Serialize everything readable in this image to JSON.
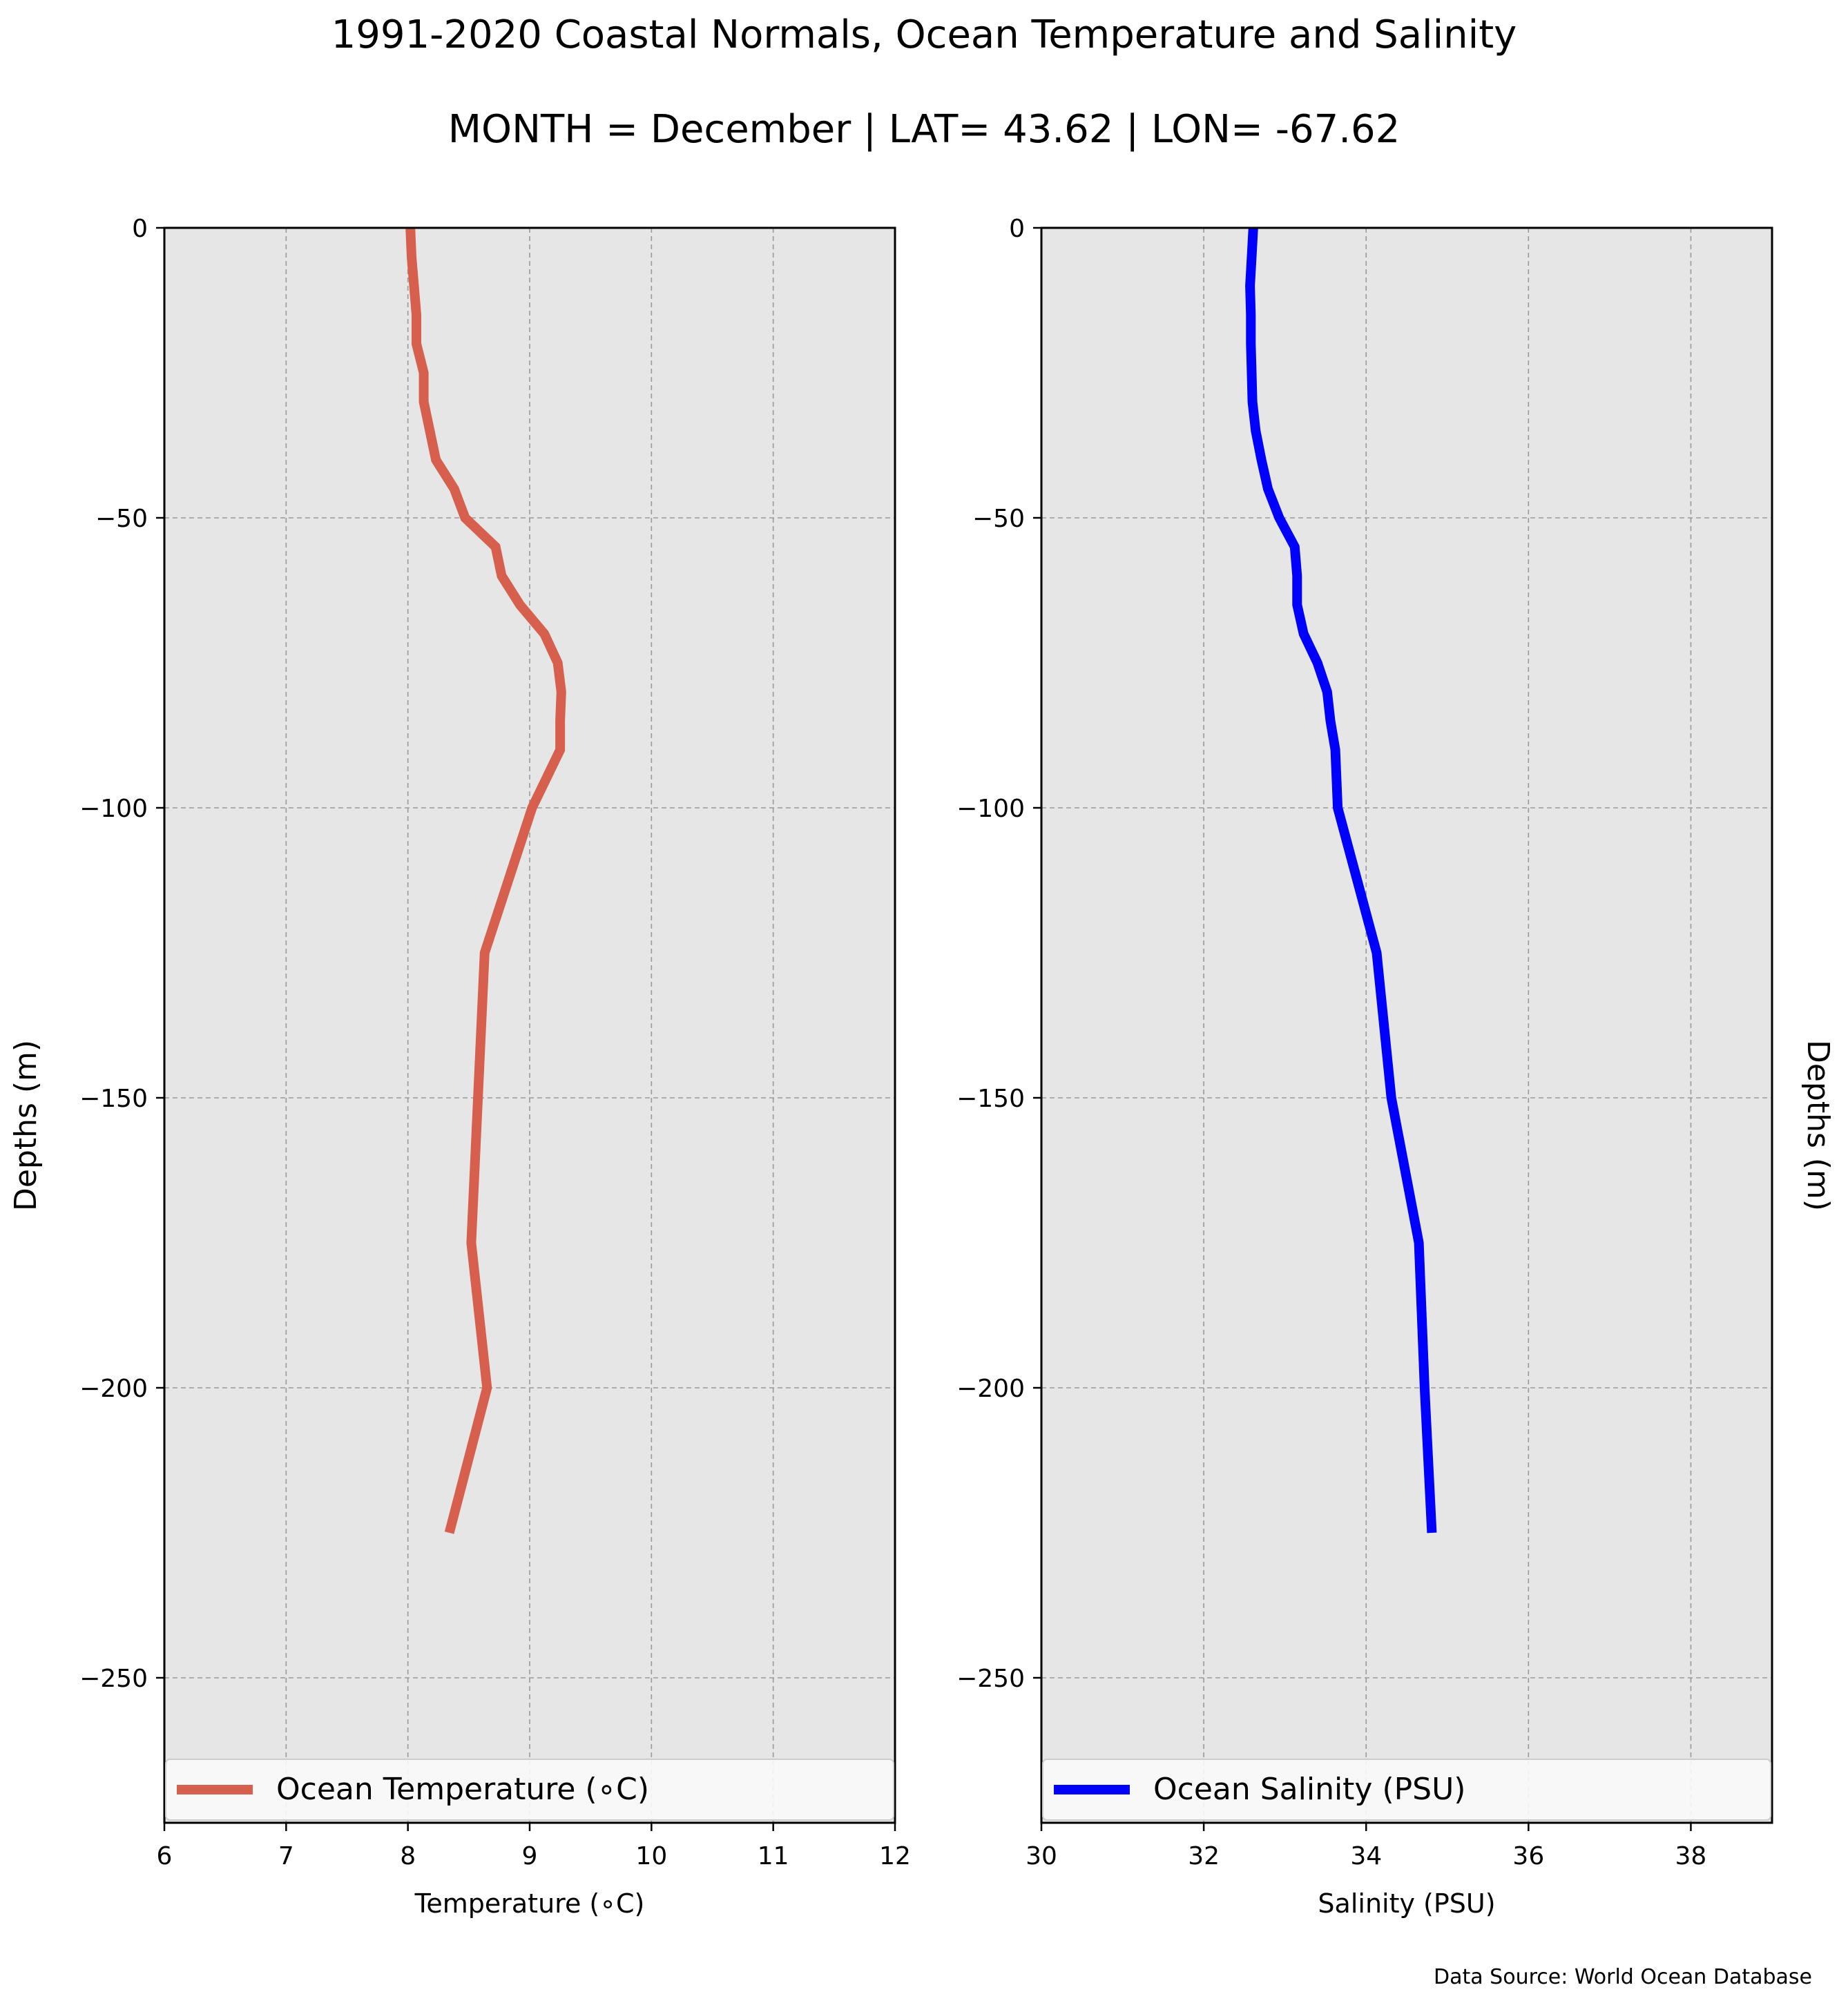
{
  "figure": {
    "title": "1991-2020 Coastal Normals, Ocean Temperature and Salinity",
    "subtitle": "MONTH = December | LAT= 43.62 | LON= -67.62",
    "source": "Data Source: World Ocean Database"
  },
  "colors": {
    "temperature": "#d6604d",
    "salinity": "#0000ff",
    "plot_background": "#e6e6e6",
    "grid": "#9a9a9a"
  },
  "chart_data": [
    {
      "type": "line",
      "orientation": "vertical-profile",
      "xlabel": "Temperature (∘C)",
      "ylabel": "Depths (m)",
      "xlim": [
        6,
        12
      ],
      "ylim": [
        -275,
        0
      ],
      "xticks": [
        6,
        7,
        8,
        9,
        10,
        11,
        12
      ],
      "yticks": [
        0,
        -50,
        -100,
        -150,
        -200,
        -250
      ],
      "grid": true,
      "legend_position": "bottom",
      "series": [
        {
          "name": "Ocean Temperature (∘C)",
          "color": "#d6604d",
          "x": [
            8.02,
            8.03,
            8.05,
            8.07,
            8.07,
            8.13,
            8.13,
            8.23,
            8.38,
            8.47,
            8.72,
            8.77,
            8.92,
            9.12,
            9.23,
            9.26,
            9.25,
            9.25,
            9.02,
            8.63,
            8.52,
            8.65,
            8.34
          ],
          "y": [
            0,
            -5,
            -10,
            -15,
            -20,
            -25,
            -30,
            -40,
            -45,
            -50,
            -55,
            -60,
            -65,
            -70,
            -75,
            -80,
            -85,
            -90,
            -100,
            -125,
            -175,
            -200,
            -225
          ]
        }
      ]
    },
    {
      "type": "line",
      "orientation": "vertical-profile",
      "xlabel": "Salinity (PSU)",
      "ylabel": "Depths (m)",
      "xlim": [
        30,
        39
      ],
      "ylim": [
        -275,
        0
      ],
      "xticks": [
        30,
        32,
        34,
        36,
        38
      ],
      "yticks": [
        0,
        -50,
        -100,
        -150,
        -200,
        -250
      ],
      "grid": true,
      "legend_position": "bottom",
      "series": [
        {
          "name": "Ocean Salinity (PSU)",
          "color": "#0000ff",
          "x": [
            32.61,
            32.59,
            32.57,
            32.58,
            32.58,
            32.59,
            32.6,
            32.64,
            32.71,
            32.79,
            32.93,
            33.12,
            33.15,
            33.15,
            33.23,
            33.4,
            33.52,
            33.56,
            33.62,
            33.65,
            34.13,
            34.31,
            34.65,
            34.72,
            34.81
          ],
          "y": [
            0,
            -5,
            -10,
            -15,
            -20,
            -25,
            -30,
            -35,
            -40,
            -45,
            -50,
            -55,
            -60,
            -65,
            -70,
            -75,
            -80,
            -85,
            -90,
            -100,
            -125,
            -150,
            -175,
            -200,
            -225
          ]
        }
      ]
    }
  ]
}
